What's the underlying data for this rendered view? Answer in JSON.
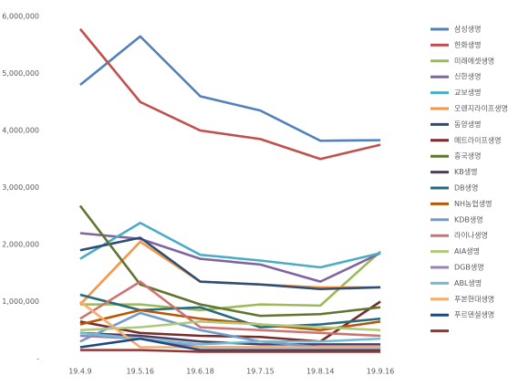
{
  "chart_data": {
    "type": "line",
    "categories": [
      "19.4.9",
      "19.5.16",
      "19.6.18",
      "19.7.15",
      "19.8.14",
      "19.9.16"
    ],
    "ylim": [
      0,
      6000000
    ],
    "yticks": [
      {
        "value": 0,
        "label": "-"
      },
      {
        "value": 1000000,
        "label": "1,000,000"
      },
      {
        "value": 2000000,
        "label": "2,000,000"
      },
      {
        "value": 3000000,
        "label": "3,000,000"
      },
      {
        "value": 4000000,
        "label": "4,000,000"
      },
      {
        "value": 5000000,
        "label": "5,000,000"
      },
      {
        "value": 6000000,
        "label": "6,000,000"
      }
    ],
    "legend": "right",
    "series": [
      {
        "name": "삼성생명",
        "color": "#4f81bd",
        "values": [
          4800000,
          5650000,
          4600000,
          4350000,
          3820000,
          3830000
        ]
      },
      {
        "name": "한화생명",
        "color": "#c0504d",
        "values": [
          5780000,
          4500000,
          4000000,
          3850000,
          3500000,
          3750000
        ]
      },
      {
        "name": "미래에셋생명",
        "color": "#9bbb59",
        "values": [
          950000,
          950000,
          850000,
          950000,
          930000,
          1880000
        ]
      },
      {
        "name": "신한생명",
        "color": "#8064a2",
        "values": [
          2200000,
          2100000,
          1750000,
          1650000,
          1350000,
          1850000
        ]
      },
      {
        "name": "교보생명",
        "color": "#4bacc6",
        "values": [
          1750000,
          2380000,
          1820000,
          1720000,
          1600000,
          1850000
        ]
      },
      {
        "name": "오렌지라이프생명",
        "color": "#f79646",
        "values": [
          950000,
          2050000,
          1350000,
          1300000,
          1250000,
          1250000
        ]
      },
      {
        "name": "동양생명",
        "color": "#2c4d75",
        "values": [
          1900000,
          2120000,
          1350000,
          1300000,
          1220000,
          1250000
        ]
      },
      {
        "name": "메트라이프생명",
        "color": "#772c2a",
        "values": [
          650000,
          450000,
          400000,
          380000,
          300000,
          1000000
        ]
      },
      {
        "name": "흥국생명",
        "color": "#5f7530",
        "values": [
          2680000,
          1300000,
          950000,
          750000,
          780000,
          900000
        ]
      },
      {
        "name": "KB생명",
        "color": "#4d3b62",
        "values": [
          450000,
          400000,
          300000,
          250000,
          250000,
          250000
        ]
      },
      {
        "name": "DB생명",
        "color": "#276a7c",
        "values": [
          1120000,
          850000,
          900000,
          550000,
          600000,
          700000
        ]
      },
      {
        "name": "NH농협생명",
        "color": "#b65708",
        "values": [
          600000,
          850000,
          700000,
          600000,
          500000,
          650000
        ]
      },
      {
        "name": "KDB생명",
        "color": "#729aca",
        "values": [
          300000,
          800000,
          500000,
          300000,
          200000,
          200000
        ]
      },
      {
        "name": "라이나생명",
        "color": "#cd7371",
        "values": [
          700000,
          1350000,
          550000,
          500000,
          450000,
          400000
        ]
      },
      {
        "name": "AIA생명",
        "color": "#afc97a",
        "values": [
          500000,
          550000,
          650000,
          600000,
          550000,
          500000
        ]
      },
      {
        "name": "DGB생명",
        "color": "#9983b5",
        "values": [
          400000,
          350000,
          200000,
          200000,
          200000,
          200000
        ]
      },
      {
        "name": "ABL생명",
        "color": "#6fbdd1",
        "values": [
          450000,
          350000,
          250000,
          300000,
          300000,
          350000
        ]
      },
      {
        "name": "푸본현대생명",
        "color": "#f9ab6b",
        "values": [
          1000000,
          200000,
          200000,
          200000,
          200000,
          200000
        ]
      },
      {
        "name": "푸르덴셜생명",
        "color": "#1f497d",
        "values": [
          200000,
          350000,
          150000,
          150000,
          150000,
          150000
        ]
      },
      {
        "color": "#943634",
        "values": [
          150000,
          150000,
          120000,
          120000,
          120000,
          120000
        ]
      }
    ]
  }
}
